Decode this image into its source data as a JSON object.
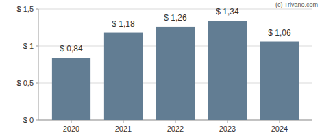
{
  "chart_data": {
    "type": "bar",
    "categories": [
      "2020",
      "2021",
      "2022",
      "2023",
      "2024"
    ],
    "values": [
      0.84,
      1.18,
      1.26,
      1.34,
      1.06
    ],
    "value_labels": [
      "$ 0,84",
      "$ 1,18",
      "$ 1,26",
      "$ 1,34",
      "$ 1,06"
    ],
    "data_labels": true,
    "color": "#627d93",
    "ylim": [
      0,
      1.5
    ],
    "yticks": [
      {
        "value": 0,
        "label": "$ 0"
      },
      {
        "value": 0.5,
        "label": "$ 0,5"
      },
      {
        "value": 1,
        "label": "$ 1"
      },
      {
        "value": 1.5,
        "label": "$ 1,5"
      }
    ],
    "grid": true,
    "annotations": [
      "(c) Trivano.com"
    ]
  }
}
